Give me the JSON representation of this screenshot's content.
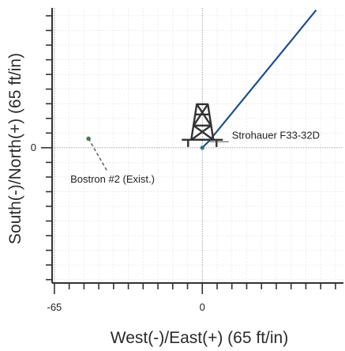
{
  "chart_data": {
    "type": "scatter",
    "title": "",
    "xlabel": "West(-)/East(+) (65 ft/in)",
    "ylabel": "South(-)/North(+) (65 ft/in)",
    "x_tick_labels": [
      {
        "value": -65,
        "label": "-65"
      },
      {
        "value": 0,
        "label": "0"
      }
    ],
    "y_tick_labels": [
      {
        "value": 0,
        "label": "0"
      }
    ],
    "xlim": [
      -66,
      62
    ],
    "ylim": [
      -60,
      62
    ],
    "grid": true,
    "series": [
      {
        "name": "",
        "kind": "wellbore-path",
        "color": "#1f4e8c",
        "x": [
          0,
          3,
          50
        ],
        "y": [
          0,
          3,
          61
        ]
      },
      {
        "name": "",
        "kind": "offset-well",
        "color": "#4a7a5a",
        "x": [
          -50,
          -42
        ],
        "y": [
          4,
          -10
        ]
      }
    ],
    "annotations": [
      {
        "text": "Strohauer F33-32D",
        "x": 13,
        "y": 3
      },
      {
        "text": "Bostron #2 (Exist.)",
        "x": -58,
        "y": -14
      }
    ],
    "rig_icon": {
      "name": "drilling-rig-icon",
      "x": 0,
      "y": 0
    }
  }
}
